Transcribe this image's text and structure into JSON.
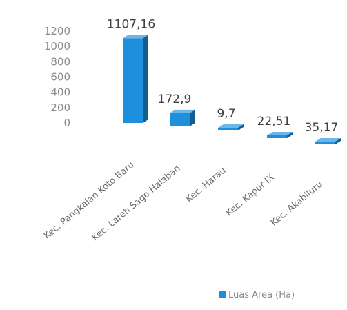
{
  "chart_data": {
    "type": "bar",
    "style": "3d-column",
    "categories": [
      "Kec. Pangkalan Koto Baru",
      "Kec. Lareh Sago Halaban",
      "Kec. Harau",
      "Kec. Kapur IX",
      "Kec. Akabiluru"
    ],
    "series": [
      {
        "name": "Luas Area (Ha)",
        "values": [
          1107.16,
          172.9,
          9.7,
          22.51,
          35.17
        ],
        "value_labels": [
          "1107,16",
          "172,9",
          "9,7",
          "22,51",
          "35,17"
        ],
        "color": "#1d8fdc"
      }
    ],
    "y_ticks": [
      "0",
      "200",
      "400",
      "600",
      "800",
      "1000",
      "1200"
    ],
    "ylim": [
      0,
      1200
    ],
    "grid": false,
    "legend_position": "bottom-right"
  }
}
